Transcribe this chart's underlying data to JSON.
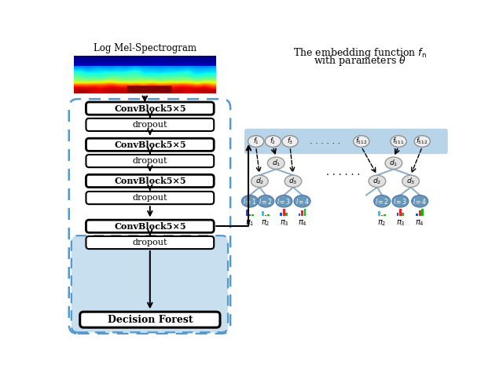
{
  "bg_color": "#ffffff",
  "spectrogram_title": "Log Mel-Spectrogram",
  "dashed_box_color": "#5599cc",
  "inner_box_color": "#c8dff0",
  "fn_bar_color": "#b8d4e8",
  "leaf_blue": "#6699bb",
  "node_gray": "#d8d8d8",
  "tree_line_color": "#88aacc",
  "left_blocks": [
    {
      "label": "ConvBlock5×5",
      "bold": true
    },
    {
      "label": "dropout",
      "bold": false
    },
    {
      "label": "ConvBlock5×5",
      "bold": true
    },
    {
      "label": "dropout",
      "bold": false
    },
    {
      "label": "ConvBlock5×5",
      "bold": true
    },
    {
      "label": "dropout",
      "bold": false
    },
    {
      "label": "ConvBlock5×5",
      "bold": true
    },
    {
      "label": "dropout",
      "bold": false
    }
  ],
  "decision_forest_label": "Decision Forest",
  "fn_labels": [
    "$f_1$",
    "$f_2$",
    "$f_3$",
    "$f_{512}$",
    "$f_{511}$",
    "$f_{512}$"
  ],
  "fn_dots": ". . . . . .",
  "tree_dots": ". . . . . .",
  "embed_title1": "The embedding function $f_{\\mathrm{n}}$",
  "embed_title2": "with parameters $\\theta$"
}
